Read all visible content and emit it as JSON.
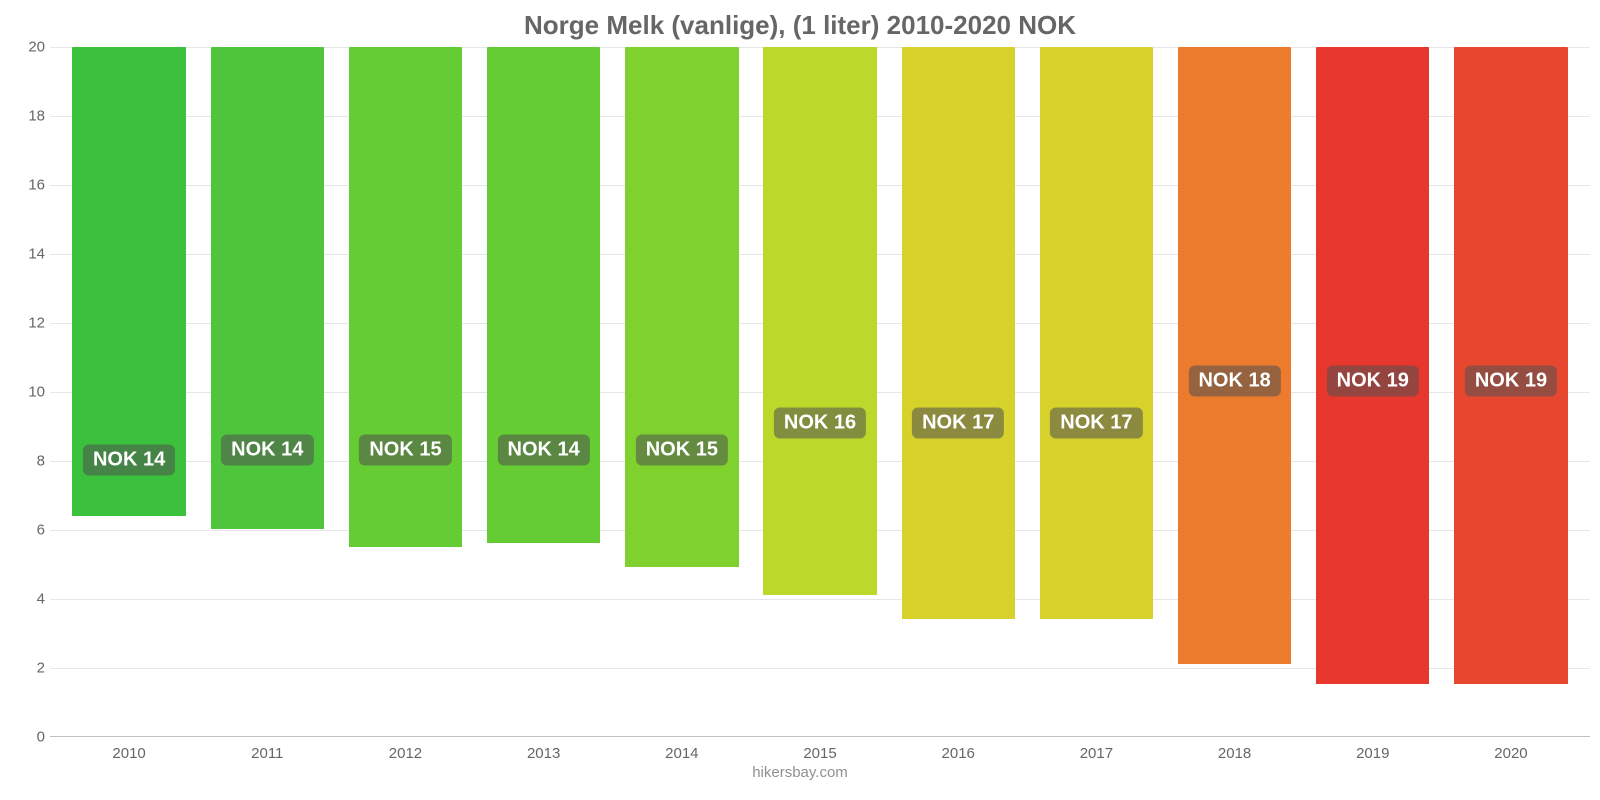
{
  "chart": {
    "type": "bar",
    "title": "Norge Melk (vanlige), (1 liter) 2010-2020 NOK",
    "title_fontsize": 26,
    "title_color": "#666666",
    "background_color": "#ffffff",
    "grid_color": "#e6e6e6",
    "axis_color": "#c0c0c0",
    "tick_color": "#666666",
    "tick_fontsize": 15,
    "ylim": [
      0,
      20
    ],
    "ytick_step": 2,
    "yticks": [
      0,
      2,
      4,
      6,
      8,
      10,
      12,
      14,
      16,
      18,
      20
    ],
    "bar_width_ratio": 0.82,
    "categories": [
      "2010",
      "2011",
      "2012",
      "2013",
      "2014",
      "2015",
      "2016",
      "2017",
      "2018",
      "2019",
      "2020"
    ],
    "values": [
      13.6,
      14.0,
      14.5,
      14.4,
      15.1,
      15.9,
      16.6,
      16.6,
      17.9,
      18.5,
      18.5
    ],
    "value_labels": [
      "NOK 14",
      "NOK 14",
      "NOK 15",
      "NOK 14",
      "NOK 15",
      "NOK 16",
      "NOK 17",
      "NOK 17",
      "NOK 18",
      "NOK 19",
      "NOK 19"
    ],
    "bar_colors": [
      "#3bc13b",
      "#4fc53b",
      "#66cc33",
      "#66cc33",
      "#7fd22e",
      "#bcd92b",
      "#d6d12b",
      "#d6d12b",
      "#ec7b2d",
      "#e8382d",
      "#e8472f"
    ],
    "label_bg": "rgba(80,80,80,0.55)",
    "label_text_color": "#ffffff",
    "label_fontsize": 20,
    "label_y_values": [
      8,
      8.3,
      8.3,
      8.3,
      8.3,
      9.1,
      9.1,
      9.1,
      10.3,
      10.3,
      10.3
    ]
  },
  "attribution": {
    "text": "hikersbay.com",
    "fontsize": 15,
    "color": "#909090"
  }
}
